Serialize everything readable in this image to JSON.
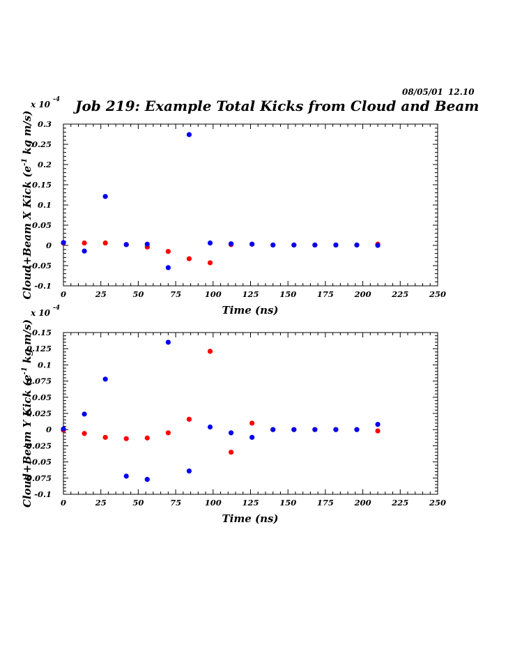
{
  "header": {
    "date": "08/05/01",
    "time": "12.10"
  },
  "title": "Job 219: Example Total Kicks from Cloud and Beam",
  "colors": {
    "series_a": "#ff0000",
    "series_b": "#0000ee",
    "frame": "#000000"
  },
  "chart_data": [
    {
      "type": "scatter",
      "xlabel": "Time (ns)",
      "ylabel_pre": "Cloud+Beam X Kick (e",
      "ylabel_sup": "-1",
      "ylabel_post": " kg m/s)",
      "multiplier_base": "x 10",
      "multiplier_exp": "-4",
      "xlim": [
        0,
        250
      ],
      "ylim": [
        -0.1,
        0.3
      ],
      "xticks": [
        0,
        25,
        50,
        75,
        100,
        125,
        150,
        175,
        200,
        225,
        250
      ],
      "xtick_labels": [
        "0",
        "25",
        "50",
        "75",
        "100",
        "125",
        "150",
        "175",
        "200",
        "225",
        "250"
      ],
      "yticks": [
        -0.1,
        -0.05,
        0,
        0.05,
        0.1,
        0.15,
        0.2,
        0.25,
        0.3
      ],
      "ytick_labels": [
        "-0.1",
        "-0.05",
        "0",
        "0.05",
        "0.1",
        "0.15",
        "0.2",
        "0.25",
        "0.3"
      ],
      "series": [
        {
          "color": "#ff0000",
          "x": [
            0,
            14,
            28,
            42,
            56,
            70,
            84,
            98,
            112,
            126,
            140,
            154,
            168,
            182,
            196,
            210
          ],
          "y": [
            0.006,
            0.006,
            0.006,
            0.002,
            -0.004,
            -0.015,
            -0.033,
            -0.043,
            0.002,
            0.003,
            0.001,
            0.001,
            0.001,
            0.001,
            0.001,
            0.003
          ]
        },
        {
          "color": "#0000ee",
          "x": [
            0,
            14,
            28,
            42,
            56,
            70,
            84,
            98,
            112,
            126,
            140,
            154,
            168,
            182,
            196,
            210
          ],
          "y": [
            0.007,
            -0.014,
            0.121,
            0.002,
            0.003,
            -0.055,
            0.274,
            0.006,
            0.004,
            0.003,
            0.001,
            0.001,
            0.001,
            0.001,
            0.001,
            0.0
          ]
        }
      ]
    },
    {
      "type": "scatter",
      "xlabel": "Time (ns)",
      "ylabel_pre": "Cloud+Beam Y Kick (e",
      "ylabel_sup": "-1",
      "ylabel_post": " kg m/s)",
      "multiplier_base": "x 10",
      "multiplier_exp": "-4",
      "xlim": [
        0,
        250
      ],
      "ylim": [
        -0.1,
        0.15
      ],
      "xticks": [
        0,
        25,
        50,
        75,
        100,
        125,
        150,
        175,
        200,
        225,
        250
      ],
      "xtick_labels": [
        "0",
        "25",
        "50",
        "75",
        "100",
        "125",
        "150",
        "175",
        "200",
        "225",
        "250"
      ],
      "yticks": [
        -0.1,
        -0.075,
        -0.05,
        -0.025,
        0,
        0.025,
        0.05,
        0.075,
        0.1,
        0.125,
        0.15
      ],
      "ytick_labels": [
        "-0.1",
        "-0.075",
        "-0.05",
        "-0.025",
        "0",
        "0.025",
        "0.05",
        "0.075",
        "0.1",
        "0.125",
        "0.15"
      ],
      "series": [
        {
          "color": "#ff0000",
          "x": [
            0,
            14,
            28,
            42,
            56,
            70,
            84,
            98,
            112,
            126,
            140,
            154,
            168,
            182,
            196,
            210
          ],
          "y": [
            -0.001,
            -0.006,
            -0.012,
            -0.014,
            -0.013,
            -0.005,
            0.016,
            0.121,
            -0.035,
            0.01,
            0.0,
            0.0,
            0.0,
            0.0,
            0.0,
            -0.002
          ]
        },
        {
          "color": "#0000ee",
          "x": [
            0,
            14,
            28,
            42,
            56,
            70,
            84,
            98,
            112,
            126,
            140,
            154,
            168,
            182,
            196,
            210
          ],
          "y": [
            0.001,
            0.024,
            0.078,
            -0.072,
            -0.077,
            0.135,
            -0.064,
            0.004,
            -0.005,
            -0.012,
            0.0,
            0.0,
            0.0,
            0.0,
            0.0,
            0.008
          ]
        }
      ]
    }
  ]
}
